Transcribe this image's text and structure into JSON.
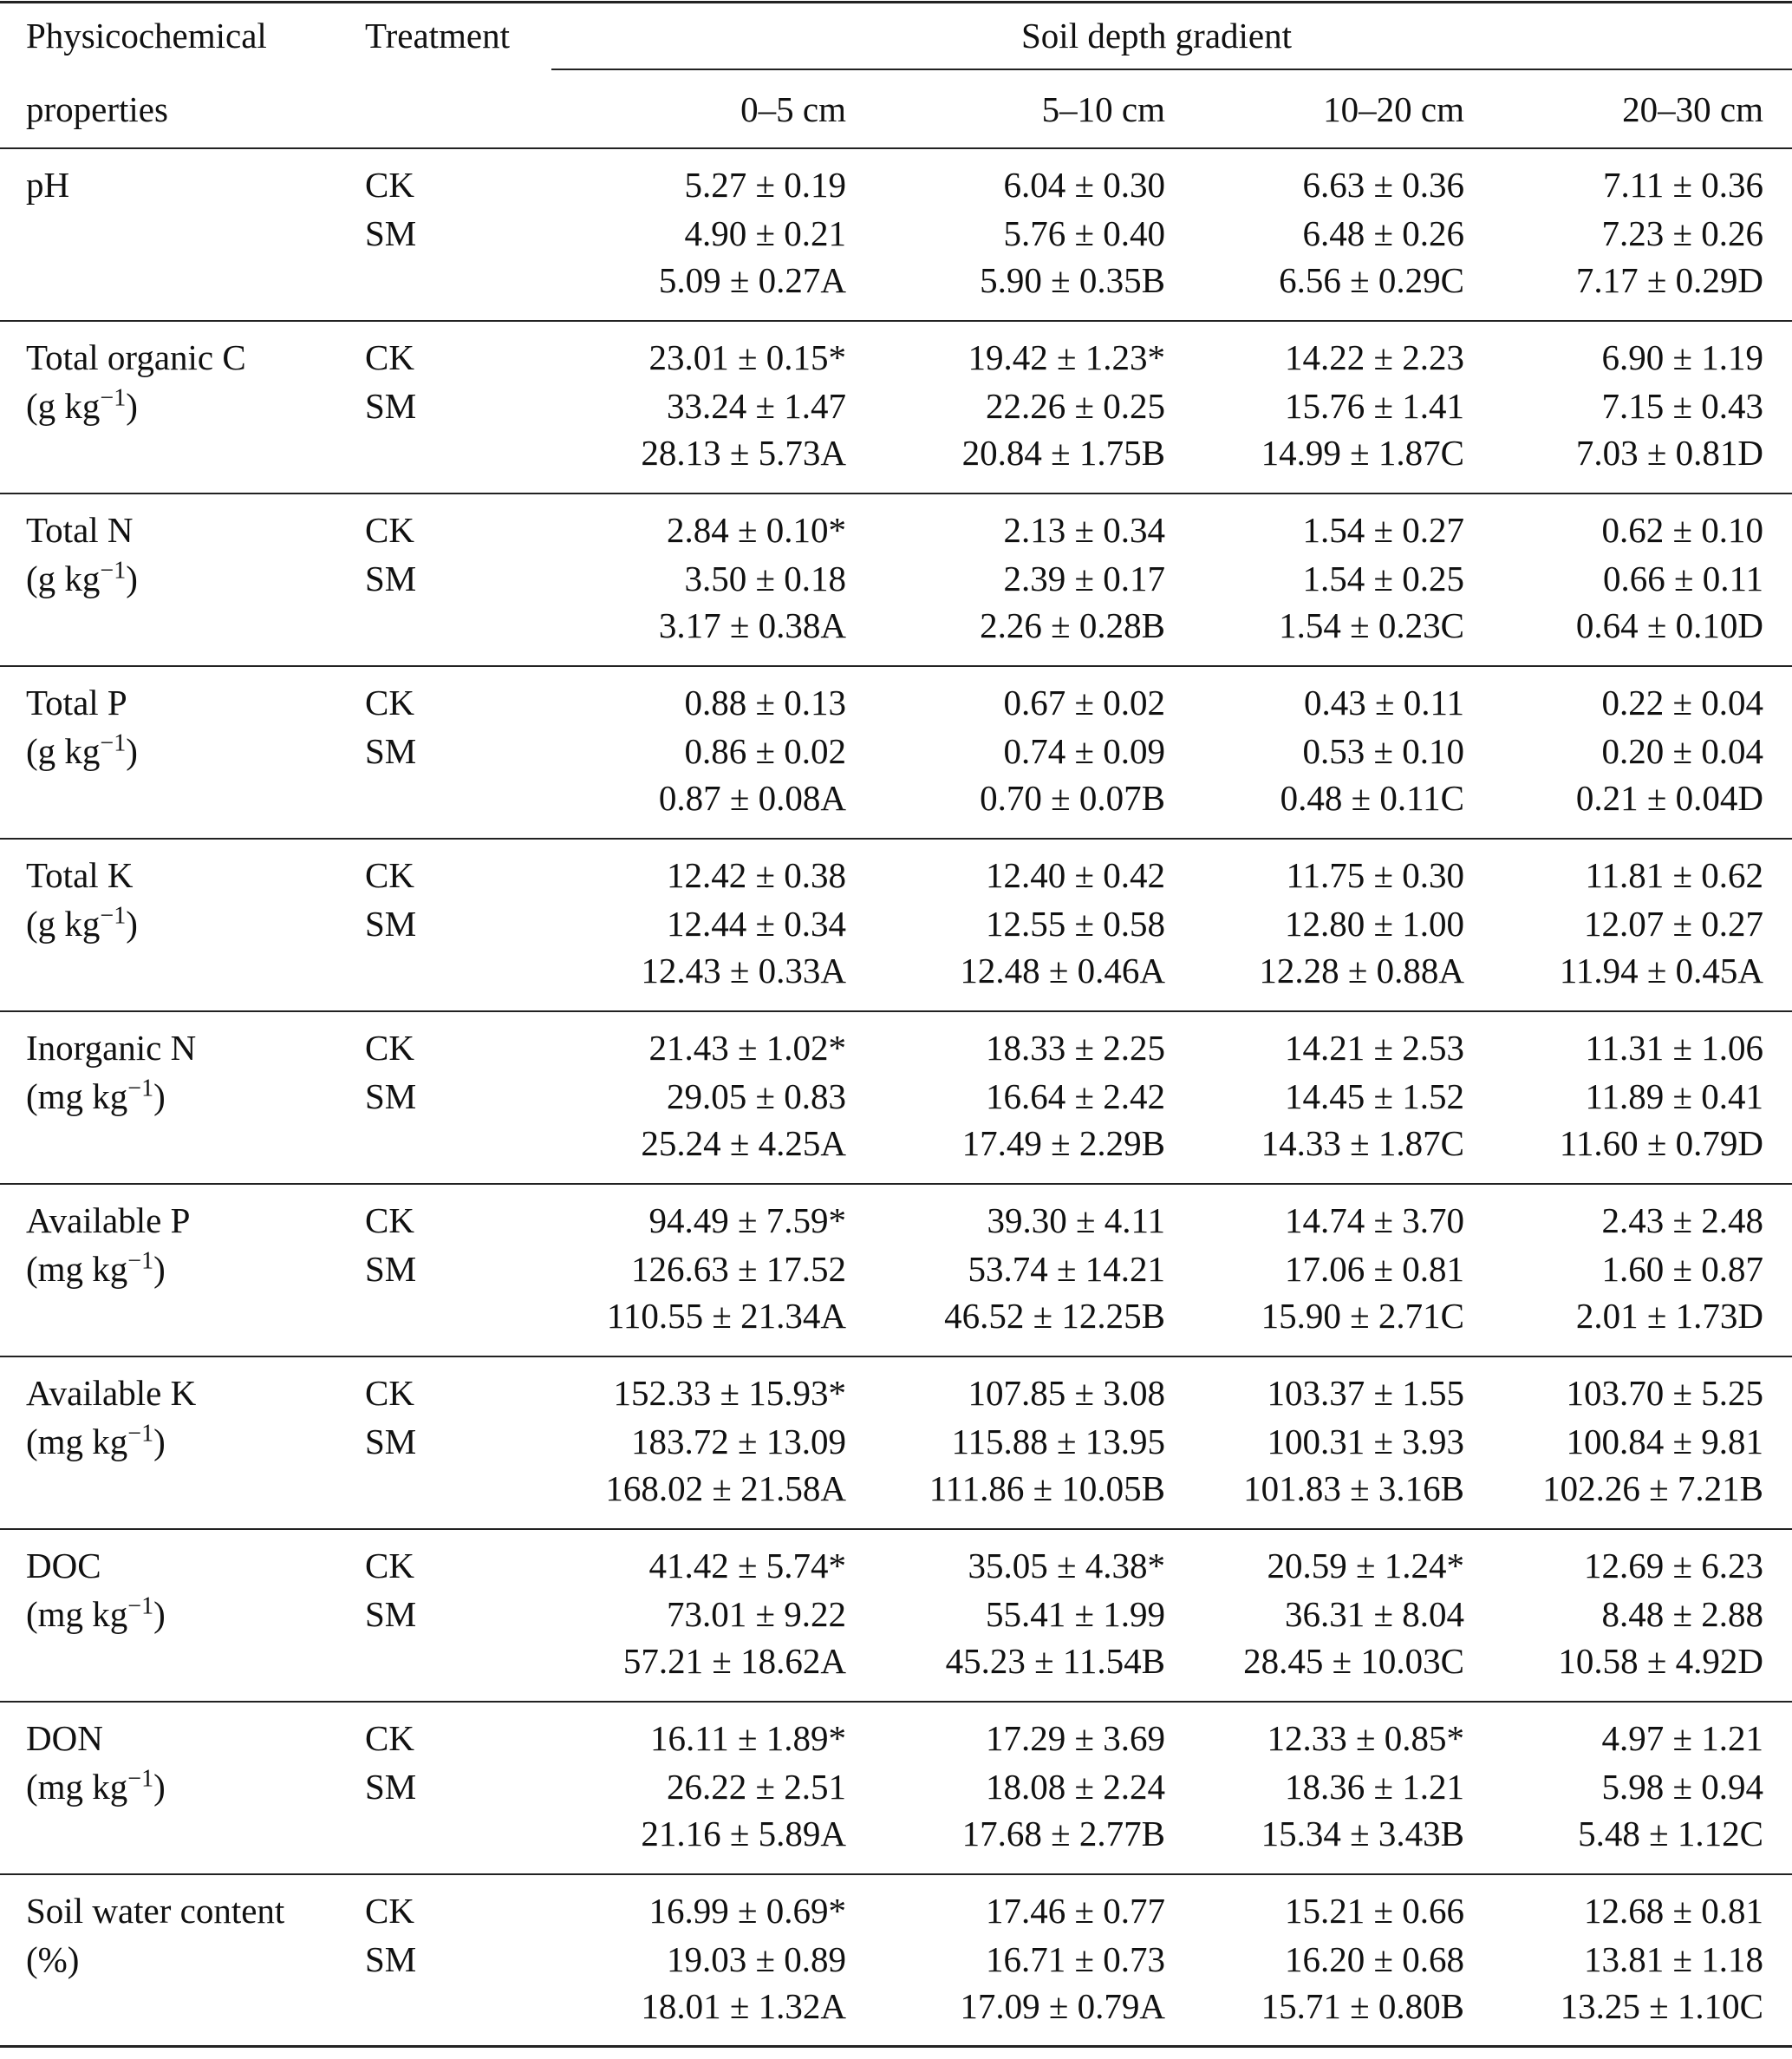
{
  "header": {
    "col1_line1": "Physicochemical",
    "col1_line2": "properties",
    "col2": "Treatment",
    "span": "Soil depth gradient",
    "depths": [
      "0–5 cm",
      "5–10 cm",
      "10–20 cm",
      "20–30 cm"
    ]
  },
  "properties": [
    {
      "name": "pH",
      "unit": "",
      "unit_exp": "",
      "ck_label": "CK",
      "sm_label": "SM",
      "ck": [
        "5.27 ± 0.19",
        "6.04 ± 0.30",
        "6.63 ± 0.36",
        "7.11 ± 0.36"
      ],
      "sm": [
        "4.90 ± 0.21",
        "5.76 ± 0.40",
        "6.48 ± 0.26",
        "7.23 ± 0.26"
      ],
      "mean": [
        "5.09 ± 0.27A",
        "5.90 ± 0.35B",
        "6.56 ± 0.29C",
        "7.17 ± 0.29D"
      ]
    },
    {
      "name": "Total organic C",
      "unit": "(g kg",
      "unit_exp": "−1",
      "ck_label": "CK",
      "sm_label": "SM",
      "ck": [
        "23.01 ± 0.15*",
        "19.42 ± 1.23*",
        "14.22 ± 2.23",
        "6.90 ± 1.19"
      ],
      "sm": [
        "33.24 ± 1.47",
        "22.26 ± 0.25",
        "15.76 ± 1.41",
        "7.15 ± 0.43"
      ],
      "mean": [
        "28.13 ± 5.73A",
        "20.84 ± 1.75B",
        "14.99 ± 1.87C",
        "7.03 ± 0.81D"
      ]
    },
    {
      "name": "Total N",
      "unit": "(g kg",
      "unit_exp": "−1",
      "ck_label": "CK",
      "sm_label": "SM",
      "ck": [
        "2.84 ± 0.10*",
        "2.13 ± 0.34",
        "1.54 ± 0.27",
        "0.62 ± 0.10"
      ],
      "sm": [
        "3.50 ± 0.18",
        "2.39 ± 0.17",
        "1.54 ± 0.25",
        "0.66 ± 0.11"
      ],
      "mean": [
        "3.17 ± 0.38A",
        "2.26 ± 0.28B",
        "1.54 ± 0.23C",
        "0.64 ± 0.10D"
      ]
    },
    {
      "name": "Total P",
      "unit": "(g kg",
      "unit_exp": "−1",
      "ck_label": "CK",
      "sm_label": "SM",
      "ck": [
        "0.88 ± 0.13",
        "0.67 ± 0.02",
        "0.43 ± 0.11",
        "0.22 ± 0.04"
      ],
      "sm": [
        "0.86 ± 0.02",
        "0.74 ± 0.09",
        "0.53 ± 0.10",
        "0.20 ± 0.04"
      ],
      "mean": [
        "0.87 ± 0.08A",
        "0.70 ± 0.07B",
        "0.48 ± 0.11C",
        "0.21 ± 0.04D"
      ]
    },
    {
      "name": "Total K",
      "unit": "(g kg",
      "unit_exp": "−1",
      "ck_label": "CK",
      "sm_label": "SM",
      "ck": [
        "12.42 ± 0.38",
        "12.40 ± 0.42",
        "11.75 ± 0.30",
        "11.81 ± 0.62"
      ],
      "sm": [
        "12.44 ± 0.34",
        "12.55 ± 0.58",
        "12.80 ± 1.00",
        "12.07 ± 0.27"
      ],
      "mean": [
        "12.43 ± 0.33A",
        "12.48 ± 0.46A",
        "12.28 ± 0.88A",
        "11.94 ± 0.45A"
      ]
    },
    {
      "name": "Inorganic N",
      "unit": "(mg kg",
      "unit_exp": "−1",
      "ck_label": "CK",
      "sm_label": "SM",
      "ck": [
        "21.43 ± 1.02*",
        "18.33 ± 2.25",
        "14.21 ± 2.53",
        "11.31 ± 1.06"
      ],
      "sm": [
        "29.05 ± 0.83",
        "16.64 ± 2.42",
        "14.45 ± 1.52",
        "11.89 ± 0.41"
      ],
      "mean": [
        "25.24 ± 4.25A",
        "17.49 ± 2.29B",
        "14.33 ± 1.87C",
        "11.60 ± 0.79D"
      ]
    },
    {
      "name": "Available P",
      "unit": "(mg kg",
      "unit_exp": "−1",
      "ck_label": "CK",
      "sm_label": "SM",
      "ck": [
        "94.49 ± 7.59*",
        "39.30 ± 4.11",
        "14.74 ± 3.70",
        "2.43 ± 2.48"
      ],
      "sm": [
        "126.63 ± 17.52",
        "53.74 ± 14.21",
        "17.06 ± 0.81",
        "1.60 ± 0.87"
      ],
      "mean": [
        "110.55 ± 21.34A",
        "46.52 ± 12.25B",
        "15.90 ± 2.71C",
        "2.01 ± 1.73D"
      ]
    },
    {
      "name": "Available K",
      "unit": "(mg kg",
      "unit_exp": "−1",
      "ck_label": "CK",
      "sm_label": "SM",
      "ck": [
        "152.33 ± 15.93*",
        "107.85 ± 3.08",
        "103.37 ± 1.55",
        "103.70 ± 5.25"
      ],
      "sm": [
        "183.72 ± 13.09",
        "115.88 ± 13.95",
        "100.31 ± 3.93",
        "100.84 ± 9.81"
      ],
      "mean": [
        "168.02 ± 21.58A",
        "111.86 ± 10.05B",
        "101.83 ± 3.16B",
        "102.26 ± 7.21B"
      ]
    },
    {
      "name": "DOC",
      "unit": "(mg kg",
      "unit_exp": "−1",
      "ck_label": "CK",
      "sm_label": "SM",
      "ck": [
        "41.42 ± 5.74*",
        "35.05 ± 4.38*",
        "20.59 ± 1.24*",
        "12.69 ± 6.23"
      ],
      "sm": [
        "73.01 ± 9.22",
        "55.41 ± 1.99",
        "36.31 ± 8.04",
        "8.48 ± 2.88"
      ],
      "mean": [
        "57.21 ± 18.62A",
        "45.23 ± 11.54B",
        "28.45 ± 10.03C",
        "10.58 ± 4.92D"
      ]
    },
    {
      "name": "DON",
      "unit": "(mg kg",
      "unit_exp": "−1",
      "ck_label": "CK",
      "sm_label": "SM",
      "ck": [
        "16.11 ± 1.89*",
        "17.29 ± 3.69",
        "12.33 ± 0.85*",
        "4.97 ± 1.21"
      ],
      "sm": [
        "26.22 ± 2.51",
        "18.08 ± 2.24",
        "18.36 ± 1.21",
        "5.98 ± 0.94"
      ],
      "mean": [
        "21.16 ± 5.89A",
        "17.68 ± 2.77B",
        "15.34 ± 3.43B",
        "5.48 ± 1.12C"
      ]
    },
    {
      "name": "Soil water content",
      "unit": "(%)",
      "unit_exp": "",
      "ck_label": "CK",
      "sm_label": "SM",
      "ck": [
        "16.99 ± 0.69*",
        "17.46 ± 0.77",
        "15.21 ± 0.66",
        "12.68 ± 0.81"
      ],
      "sm": [
        "19.03 ± 0.89",
        "16.71 ± 0.73",
        "16.20 ± 0.68",
        "13.81 ± 1.18"
      ],
      "mean": [
        "18.01 ± 1.32A",
        "17.09 ± 0.79A",
        "15.71 ± 0.80B",
        "13.25 ± 1.10C"
      ]
    }
  ]
}
